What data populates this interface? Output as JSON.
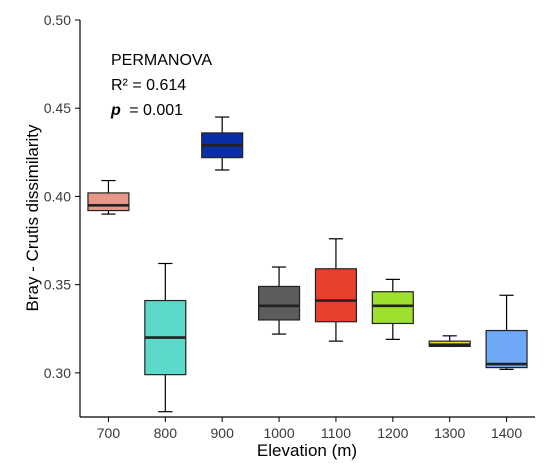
{
  "chart_data": {
    "type": "box",
    "xlabel": "Elevation (m)",
    "ylabel": "Bray - Crutis dissimilarity",
    "ylim": [
      0.275,
      0.5
    ],
    "yticks": [
      "0.30",
      "0.35",
      "0.40",
      "0.45",
      "0.50"
    ],
    "grid": false,
    "annotation": {
      "line1": "PERMANOVA",
      "line2": "R² = 0.614",
      "p_symbol": "p",
      "p_value": "= 0.001"
    },
    "categories": [
      "700",
      "800",
      "900",
      "1000",
      "1100",
      "1200",
      "1300",
      "1400"
    ],
    "boxes": [
      {
        "category": "700",
        "whisker_low": 0.39,
        "q1": 0.392,
        "median": 0.395,
        "q3": 0.402,
        "whisker_high": 0.409,
        "color": "#E8968A"
      },
      {
        "category": "800",
        "whisker_low": 0.278,
        "q1": 0.299,
        "median": 0.32,
        "q3": 0.341,
        "whisker_high": 0.362,
        "color": "#5DD9C9"
      },
      {
        "category": "900",
        "whisker_low": 0.415,
        "q1": 0.422,
        "median": 0.429,
        "q3": 0.436,
        "whisker_high": 0.445,
        "color": "#0A2EA6"
      },
      {
        "category": "1000",
        "whisker_low": 0.322,
        "q1": 0.33,
        "median": 0.338,
        "q3": 0.349,
        "whisker_high": 0.36,
        "color": "#5C5C5C"
      },
      {
        "category": "1100",
        "whisker_low": 0.318,
        "q1": 0.329,
        "median": 0.341,
        "q3": 0.359,
        "whisker_high": 0.376,
        "color": "#E8402C"
      },
      {
        "category": "1200",
        "whisker_low": 0.319,
        "q1": 0.328,
        "median": 0.338,
        "q3": 0.346,
        "whisker_high": 0.353,
        "color": "#9DE02E"
      },
      {
        "category": "1300",
        "whisker_low": 0.315,
        "q1": 0.315,
        "median": 0.316,
        "q3": 0.318,
        "whisker_high": 0.321,
        "color": "#F2D52A"
      },
      {
        "category": "1400",
        "whisker_low": 0.302,
        "q1": 0.303,
        "median": 0.305,
        "q3": 0.324,
        "whisker_high": 0.344,
        "color": "#6FA8F7"
      }
    ]
  }
}
